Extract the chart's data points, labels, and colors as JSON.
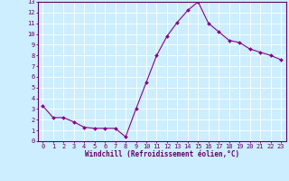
{
  "x": [
    0,
    1,
    2,
    3,
    4,
    5,
    6,
    7,
    8,
    9,
    10,
    11,
    12,
    13,
    14,
    15,
    16,
    17,
    18,
    19,
    20,
    21,
    22,
    23
  ],
  "y": [
    3.3,
    2.2,
    2.2,
    1.8,
    1.3,
    1.2,
    1.2,
    1.2,
    0.4,
    3.0,
    5.5,
    8.0,
    9.8,
    11.1,
    12.2,
    13.0,
    11.0,
    10.2,
    9.4,
    9.2,
    8.6,
    8.3,
    8.0,
    7.6
  ],
  "xlabel": "Windchill (Refroidissement éolien,°C)",
  "xlim": [
    -0.5,
    23.5
  ],
  "ylim": [
    0,
    13
  ],
  "yticks": [
    0,
    1,
    2,
    3,
    4,
    5,
    6,
    7,
    8,
    9,
    10,
    11,
    12,
    13
  ],
  "xticks": [
    0,
    1,
    2,
    3,
    4,
    5,
    6,
    7,
    8,
    9,
    10,
    11,
    12,
    13,
    14,
    15,
    16,
    17,
    18,
    19,
    20,
    21,
    22,
    23
  ],
  "line_color": "#880088",
  "marker_color": "#880088",
  "bg_color": "#cceeff",
  "grid_color": "#ffffff",
  "axis_label_color": "#660066",
  "tick_label_color": "#660066",
  "font_family": "monospace",
  "tick_fontsize": 5.0,
  "xlabel_fontsize": 5.5
}
